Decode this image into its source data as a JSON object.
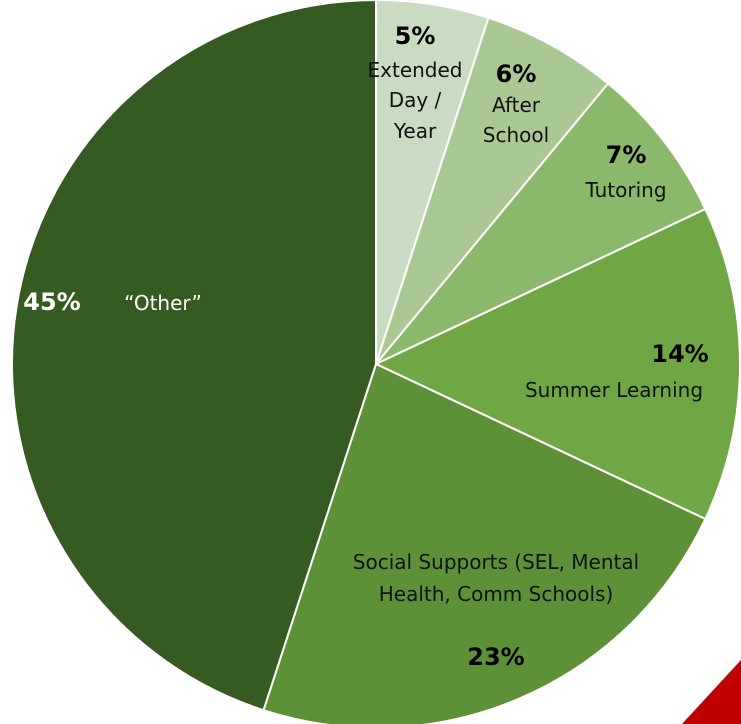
{
  "chart_data": {
    "type": "pie",
    "slices": [
      {
        "label": [
          "Extended",
          "Day /",
          "Year"
        ],
        "percent_label": "5%",
        "value": 5,
        "color": "#c9dbc0"
      },
      {
        "label": [
          "After",
          "School"
        ],
        "percent_label": "6%",
        "value": 6,
        "color": "#a9c893"
      },
      {
        "label": [
          "Tutoring"
        ],
        "percent_label": "7%",
        "value": 7,
        "color": "#8cb86b"
      },
      {
        "label": [
          "Summer Learning"
        ],
        "percent_label": "14%",
        "value": 14,
        "color": "#70a744"
      },
      {
        "label": [
          "Social Supports (SEL, Mental",
          "Health, Comm Schools)"
        ],
        "percent_label": "23%",
        "value": 23,
        "color": "#5e9137"
      },
      {
        "label": [
          "“Other”"
        ],
        "percent_label": "45%",
        "value": 45,
        "color": "#355b22"
      }
    ],
    "start_angle": "12 o'clock",
    "direction": "clockwise",
    "legend": "none",
    "corner_accent_color": "#c00000"
  }
}
